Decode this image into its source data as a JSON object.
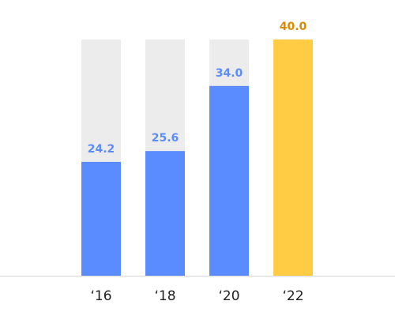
{
  "chart_data": {
    "type": "bar",
    "categories": [
      "‘16",
      "‘18",
      "‘20",
      "‘22"
    ],
    "values": [
      24.2,
      25.6,
      34.0,
      40.0
    ],
    "value_labels": [
      "24.2",
      "25.6",
      "34.0",
      "40.0"
    ],
    "colors": [
      "#5b8cff",
      "#5b8cff",
      "#5b8cff",
      "#ffcc44"
    ],
    "label_colors": [
      "#5b8cff",
      "#5b8cff",
      "#5b8cff",
      "#d98a00"
    ],
    "track_color": "#ececec",
    "ylim": [
      9.5,
      40
    ]
  }
}
